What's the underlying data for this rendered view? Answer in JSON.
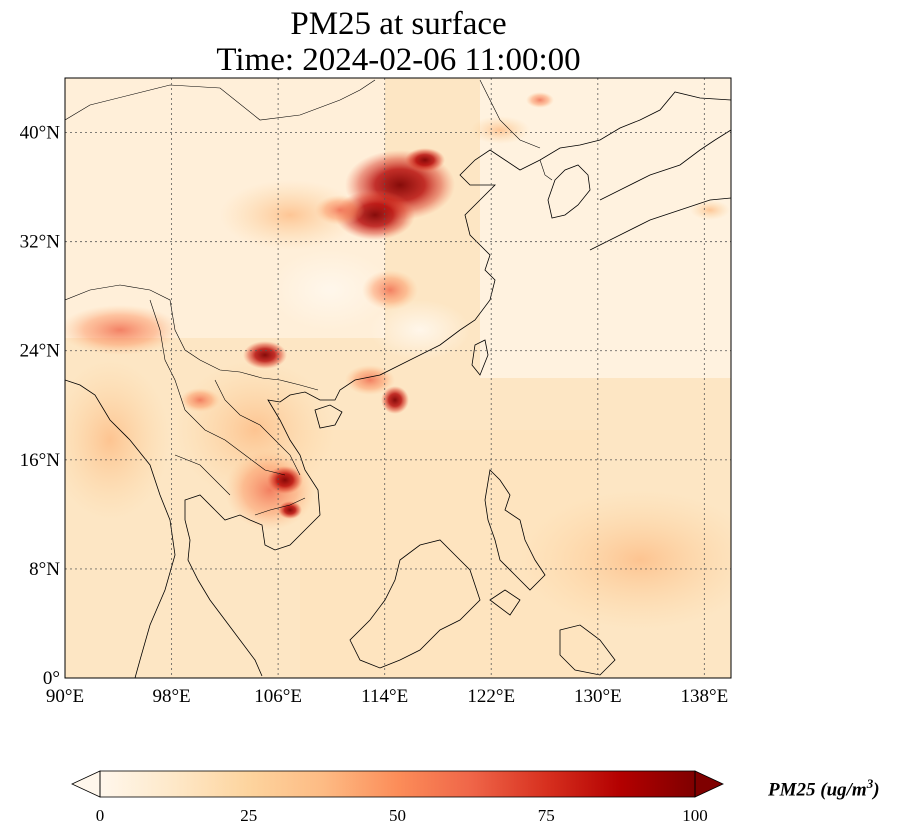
{
  "title": {
    "line1": "PM25 at surface",
    "line2": "Time: 2024-02-06 11:00:00"
  },
  "map": {
    "projection": "PlateCarree",
    "lon_range": [
      90,
      140
    ],
    "lat_range": [
      0,
      44
    ],
    "gridlines": true,
    "lon_ticks": [
      "90°E",
      "98°E",
      "106°E",
      "114°E",
      "122°E",
      "130°E",
      "138°E"
    ],
    "lat_ticks": [
      "0°",
      "8°N",
      "16°N",
      "24°N",
      "32°N",
      "40°N"
    ],
    "lon_tick_values": [
      90,
      98,
      106,
      114,
      122,
      130,
      138
    ],
    "lat_tick_values": [
      0,
      8,
      16,
      24,
      32,
      40
    ],
    "features": [
      "coastlines",
      "country borders"
    ]
  },
  "colorbar": {
    "label": "PM25 (ug/m",
    "label_superscript": "3",
    "label_close": ")",
    "ticks": [
      "0",
      "25",
      "50",
      "75",
      "100"
    ],
    "range": [
      0,
      100
    ],
    "colormap": "OrRd",
    "extend": "both",
    "colors": [
      "#fff7ec",
      "#fee8c8",
      "#fdd49e",
      "#fdbb84",
      "#fc8d59",
      "#ef6548",
      "#d7301f",
      "#b30000",
      "#7f0000"
    ]
  }
}
